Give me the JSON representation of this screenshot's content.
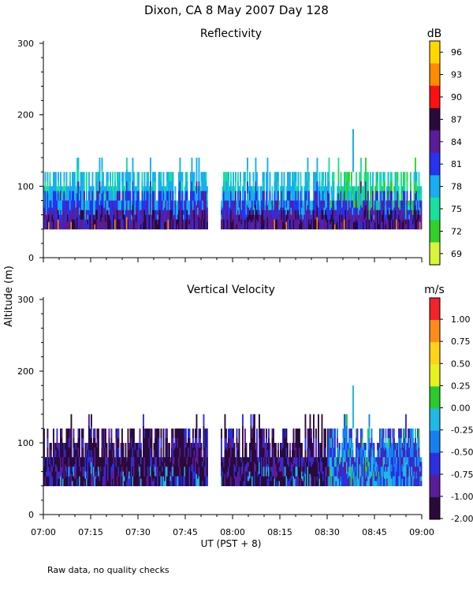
{
  "title": "Dixon, CA  8 May 2007  Day 128",
  "ylabel": "Altitude (m)",
  "xlabel": "UT  (PST + 8)",
  "footnote": "Raw data, no quality checks",
  "colorbars": {
    "reflectivity": {
      "unit": "dB",
      "ticks": [
        "96",
        "93",
        "90",
        "87",
        "84",
        "81",
        "78",
        "75",
        "72",
        "69"
      ],
      "colors": [
        "#ffd800",
        "#ff8c00",
        "#ff1010",
        "#2a0a3a",
        "#5a1c99",
        "#2633f0",
        "#16aef0",
        "#19e0a0",
        "#30d12b",
        "#d8f53a"
      ]
    },
    "velocity": {
      "unit": "m/s",
      "ticks": [
        "1.00",
        "0.75",
        "0.50",
        "0.25",
        "0.00",
        "-0.25",
        "-0.50",
        "-0.75",
        "-1.00",
        "-2.00"
      ],
      "colors": [
        "#f4222a",
        "#ff8c1a",
        "#ffd21a",
        "#e8f020",
        "#2acb2a",
        "#20b8e6",
        "#1580f0",
        "#2a30e0",
        "#5a1c9a",
        "#2a0a3a"
      ]
    }
  },
  "chart_data": [
    {
      "type": "heatmap",
      "title": "Reflectivity",
      "ylabel": "Altitude (m)",
      "xlabel": "UT  (PST + 8)",
      "x_ticks": [
        "07:00",
        "07:15",
        "07:30",
        "07:45",
        "08:00",
        "08:15",
        "08:30",
        "08:45",
        "09:00"
      ],
      "y_ticks": [
        "0",
        "100",
        "200",
        "300"
      ],
      "xlim": [
        "07:00",
        "09:00"
      ],
      "ylim": [
        0,
        300
      ],
      "colorbar_unit": "dB",
      "colorbar_ticks": [
        69,
        72,
        75,
        78,
        81,
        84,
        87,
        90,
        93,
        96
      ],
      "data_region": {
        "altitude_min": 40,
        "altitude_max": 140,
        "gap": [
          "07:52",
          "07:56"
        ],
        "plume": {
          "time": "08:38",
          "altitude": [
            120,
            180
          ]
        }
      }
    },
    {
      "type": "heatmap",
      "title": "Vertical Velocity",
      "ylabel": "Altitude (m)",
      "xlabel": "UT  (PST + 8)",
      "x_ticks": [
        "07:00",
        "07:15",
        "07:30",
        "07:45",
        "08:00",
        "08:15",
        "08:30",
        "08:45",
        "09:00"
      ],
      "y_ticks": [
        "0",
        "100",
        "200",
        "300"
      ],
      "xlim": [
        "07:00",
        "09:00"
      ],
      "ylim": [
        0,
        300
      ],
      "colorbar_unit": "m/s",
      "colorbar_ticks": [
        -2.0,
        -1.0,
        -0.75,
        -0.5,
        -0.25,
        0.0,
        0.25,
        0.5,
        0.75,
        1.0
      ],
      "data_region": {
        "altitude_min": 40,
        "altitude_max": 140,
        "gap": [
          "07:52",
          "07:56"
        ],
        "plume": {
          "time": "08:38",
          "altitude": [
            120,
            180
          ]
        }
      }
    }
  ]
}
